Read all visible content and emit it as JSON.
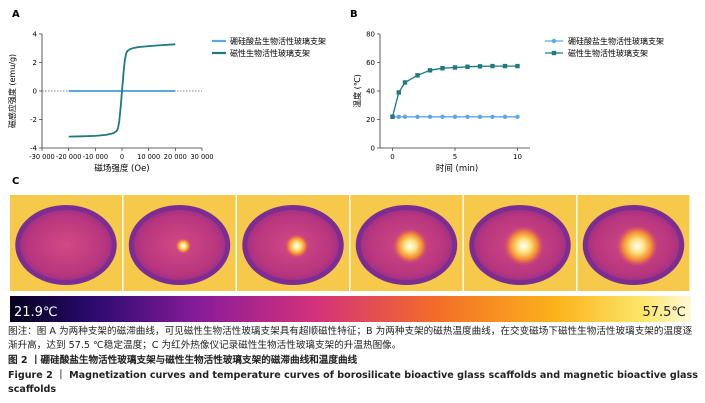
{
  "chart_data": [
    {
      "panel": "A",
      "type": "line",
      "xlabel": "磁场强度 (Oe)",
      "ylabel": "磁感应强度 (emu/g)",
      "xlim": [
        -30000,
        30000
      ],
      "ylim": [
        -4,
        4
      ],
      "xticks": [
        -30000,
        -20000,
        -10000,
        0,
        10000,
        20000,
        30000
      ],
      "xtick_labels": [
        "-30 000",
        "-20 000",
        "-10 000",
        "0",
        "10 000",
        "20 000",
        "30 000"
      ],
      "yticks": [
        -4,
        -2,
        0,
        2,
        4
      ],
      "legend_position": "right",
      "series": [
        {
          "name": "硼硅酸盐生物活性玻璃支架",
          "color": "#5aa9e6",
          "x": [
            -20000,
            -10000,
            0,
            10000,
            20000
          ],
          "y": [
            0,
            0,
            0,
            0,
            0
          ]
        },
        {
          "name": "磁性生物活性玻璃支架",
          "color": "#1d7a80",
          "x": [
            -20000,
            -15000,
            -10000,
            -6000,
            -4000,
            -3000,
            -2000,
            -1500,
            -1000,
            -500,
            0,
            500,
            1000,
            1500,
            2000,
            3000,
            4000,
            6000,
            10000,
            15000,
            20000
          ],
          "y": [
            -3.2,
            -3.18,
            -3.15,
            -3.08,
            -3.0,
            -2.93,
            -2.8,
            -2.6,
            -2.1,
            -1.1,
            0,
            1.1,
            2.1,
            2.6,
            2.8,
            2.93,
            3.0,
            3.08,
            3.15,
            3.22,
            3.28
          ]
        }
      ]
    },
    {
      "panel": "B",
      "type": "line",
      "xlabel": "时间 (min)",
      "ylabel": "温度 (℃)",
      "xlim": [
        -1,
        11
      ],
      "ylim": [
        0,
        80
      ],
      "xticks": [
        0,
        5,
        10
      ],
      "yticks": [
        0,
        20,
        40,
        60,
        80
      ],
      "legend_position": "right",
      "series": [
        {
          "name": "硼硅酸盐生物活性玻璃支架",
          "color": "#5aa9e6",
          "marker": "circle",
          "x": [
            0,
            0.5,
            1,
            2,
            3,
            4,
            5,
            6,
            7,
            8,
            9,
            10
          ],
          "y": [
            21.9,
            21.9,
            21.9,
            21.9,
            21.9,
            21.9,
            21.9,
            21.9,
            21.9,
            21.9,
            21.9,
            21.9
          ]
        },
        {
          "name": "磁性生物活性玻璃支架",
          "color": "#1d7a80",
          "marker": "square",
          "x": [
            0,
            0.5,
            1,
            2,
            3,
            4,
            5,
            6,
            7,
            8,
            9,
            10
          ],
          "y": [
            21.9,
            39,
            46,
            51,
            54.5,
            56,
            56.5,
            57,
            57.3,
            57.5,
            57.5,
            57.5
          ]
        }
      ]
    }
  ],
  "panels": {
    "a": "A",
    "b": "B",
    "c": "C"
  },
  "thermal": {
    "frames": [
      {
        "spot": 0
      },
      {
        "spot": 0.1
      },
      {
        "spot": 0.35
      },
      {
        "spot": 0.7
      },
      {
        "spot": 0.85
      },
      {
        "spot": 0.9
      }
    ],
    "scale_min_label": "21.9℃",
    "scale_max_label": "57.5℃"
  },
  "captions": {
    "note_zh": "图注：图 A 为两种支架的磁滞曲线，可见磁性生物活性玻璃支架具有超顺磁性特征；B 为两种支架的磁热温度曲线，在交变磁场下磁性生物活性玻璃支架的温度逐渐升高，达到 57.5 ℃稳定温度；C 为红外热像仪记录磁性生物活性玻璃支架的升温热图像。",
    "figure_zh": "图 2 丨硼硅酸盐生物活性玻璃支架与磁性生物活性玻璃支架的磁滞曲线和温度曲线",
    "figure_en": "Figure 2 ｜ Magnetization curves and temperature curves of borosilicate bioactive glass scaffolds and magnetic bioactive glass scaffolds"
  }
}
